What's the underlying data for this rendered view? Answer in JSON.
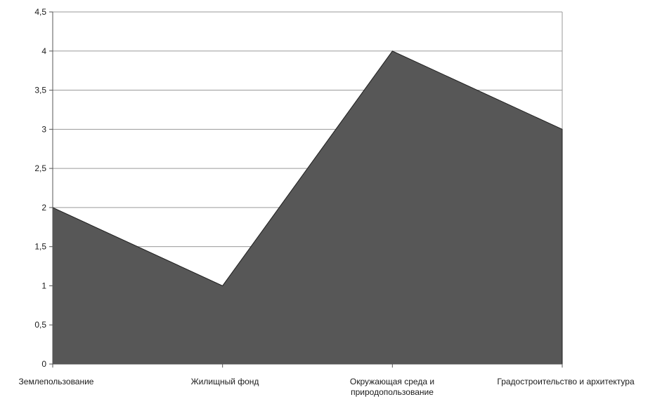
{
  "chart_data": {
    "type": "area",
    "title": "",
    "xlabel": "",
    "ylabel": "",
    "categories": [
      [
        "Землепользование"
      ],
      [
        "Жилищный фонд"
      ],
      [
        "Окружающая среда и",
        "природопользование"
      ],
      [
        "Градостроительство и архитектура"
      ]
    ],
    "series": [
      {
        "values": [
          2,
          1,
          4,
          3
        ],
        "color": "#575757"
      }
    ],
    "ylim": [
      0,
      4.5
    ],
    "yticks": [
      "0",
      "0,5",
      "1",
      "1,5",
      "2",
      "2,5",
      "3",
      "3,5",
      "4",
      "4,5"
    ],
    "grid": true,
    "legend": "none"
  }
}
